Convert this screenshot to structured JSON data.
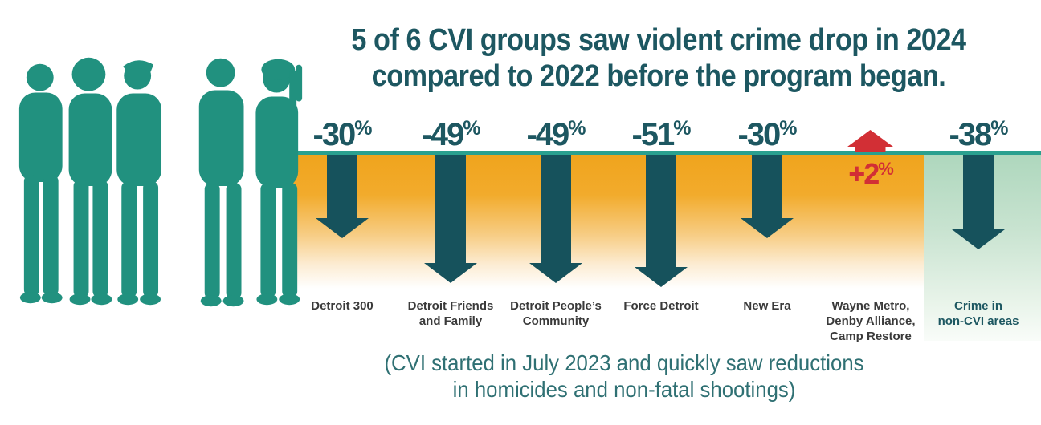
{
  "title": {
    "line1": "5 of 6 CVI groups saw violent crime drop in 2024",
    "line2": "compared to 2022 before the program began."
  },
  "caption": {
    "line1": "(CVI started in July 2023 and quickly saw reductions",
    "line2": "in homicides and non-fatal shootings)"
  },
  "groups": [
    {
      "display": "-30",
      "symbol": "%",
      "value": -30,
      "direction": "down",
      "name_lines": [
        "Detroit 300"
      ],
      "accent": false
    },
    {
      "display": "-49",
      "symbol": "%",
      "value": -49,
      "direction": "down",
      "name_lines": [
        "Detroit Friends",
        "and Family"
      ],
      "accent": false
    },
    {
      "display": "-49",
      "symbol": "%",
      "value": -49,
      "direction": "down",
      "name_lines": [
        "Detroit People’s",
        "Community"
      ],
      "accent": false
    },
    {
      "display": "-51",
      "symbol": "%",
      "value": -51,
      "direction": "down",
      "name_lines": [
        "Force Detroit"
      ],
      "accent": false
    },
    {
      "display": "-30",
      "symbol": "%",
      "value": -30,
      "direction": "down",
      "name_lines": [
        "New Era"
      ],
      "accent": false
    },
    {
      "display": "+2",
      "symbol": "%",
      "value": 2,
      "direction": "up",
      "name_lines": [
        "Wayne Metro,",
        "Denby Alliance,",
        "Camp Restore"
      ],
      "accent": false
    },
    {
      "display": "-38",
      "symbol": "%",
      "value": -38,
      "direction": "down",
      "name_lines": [
        "Crime in",
        "non-CVI areas"
      ],
      "accent": true
    }
  ],
  "chart_data": {
    "type": "bar",
    "title": "5 of 6 CVI groups saw violent crime drop in 2024 compared to 2022 before the program began.",
    "categories": [
      "Detroit 300",
      "Detroit Friends and Family",
      "Detroit People’s Community",
      "Force Detroit",
      "New Era",
      "Wayne Metro, Denby Alliance, Camp Restore",
      "Crime in non-CVI areas"
    ],
    "values": [
      -30,
      -49,
      -49,
      -51,
      -30,
      2,
      -38
    ],
    "unit": "percent change in violent crime, 2024 vs 2022",
    "xlabel": "",
    "ylabel": "",
    "legend": false,
    "annotation": "(CVI started in July 2023 and quickly saw reductions in homicides and non-fatal shootings)"
  },
  "colors": {
    "teal_dark": "#1d5761",
    "arrow_teal": "#16525c",
    "baseline_teal": "#2aa08f",
    "orange_band_top": "#f0a41d",
    "green_band_top": "#aed7bd",
    "red": "#d22f35",
    "label_gray": "#3a3a3a",
    "caption_teal": "#2f7073",
    "silhouette": "#21917f",
    "silhouette_lines": "#4aae9c"
  }
}
